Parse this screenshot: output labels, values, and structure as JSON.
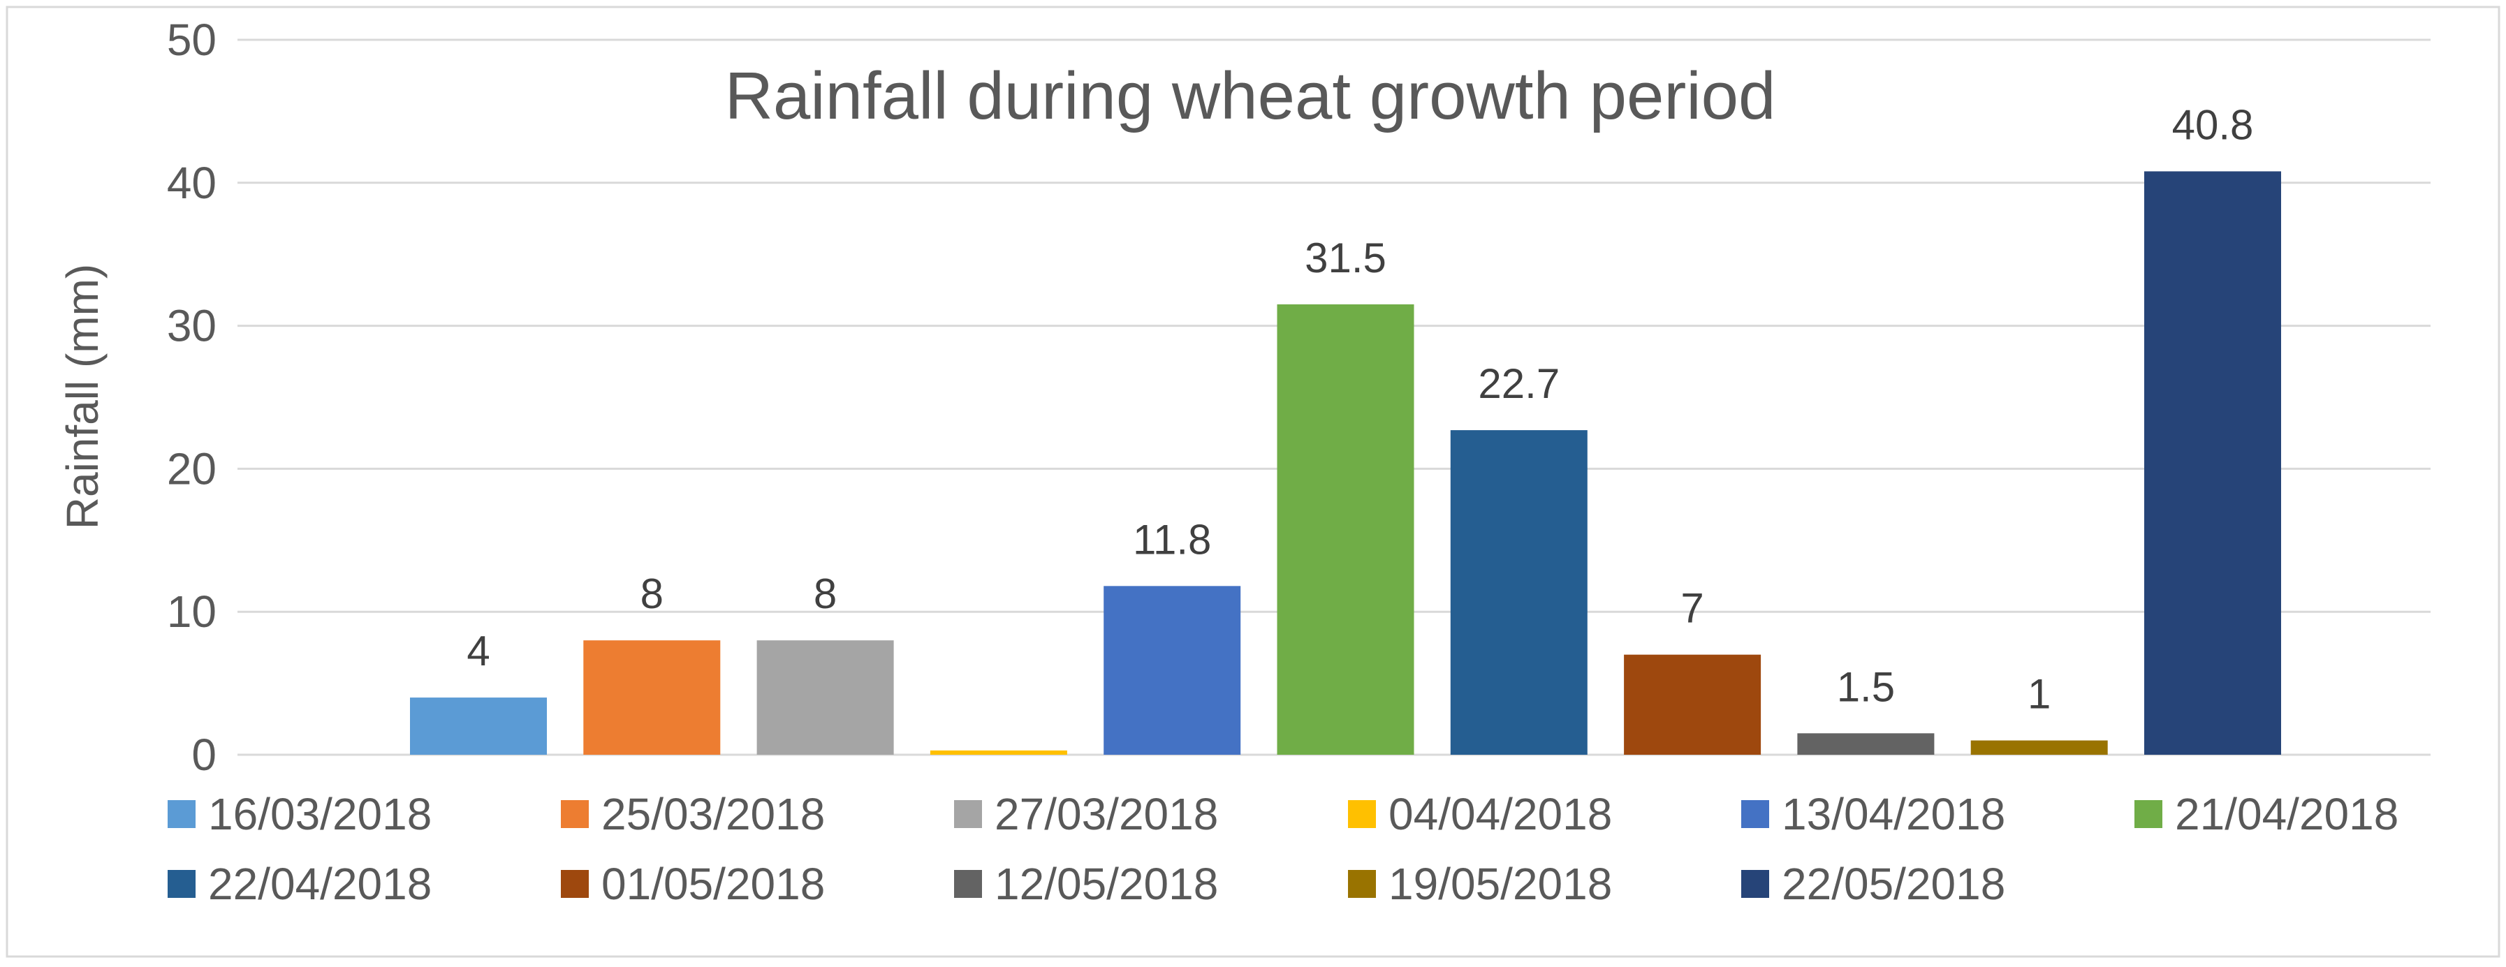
{
  "chart_data": {
    "type": "bar",
    "title": "Rainfall during wheat growth period",
    "xlabel": "",
    "ylabel": "Rainfall (mm)",
    "ylim": [
      0,
      50
    ],
    "yticks": [
      0,
      10,
      20,
      30,
      40,
      50
    ],
    "grid": true,
    "legend_position": "bottom",
    "categories": [
      "16/03/2018",
      "25/03/2018",
      "27/03/2018",
      "04/04/2018",
      "13/04/2018",
      "21/04/2018",
      "22/04/2018",
      "01/05/2018",
      "12/05/2018",
      "19/05/2018",
      "22/05/2018"
    ],
    "values": [
      4,
      8,
      8,
      0.3,
      11.8,
      31.5,
      22.7,
      7,
      1.5,
      1,
      40.8
    ],
    "data_labels": [
      "4",
      "8",
      "8",
      "",
      "11.8",
      "31.5",
      "22.7",
      "7",
      "1.5",
      "1",
      "40.8"
    ],
    "colors": [
      "#5B9BD5",
      "#ED7D31",
      "#A5A5A5",
      "#FFC000",
      "#4472C4",
      "#70AD47",
      "#255E91",
      "#9E480E",
      "#636363",
      "#997300",
      "#264478"
    ],
    "axis_color": "#D9D9D9",
    "text_color": "#595959"
  }
}
